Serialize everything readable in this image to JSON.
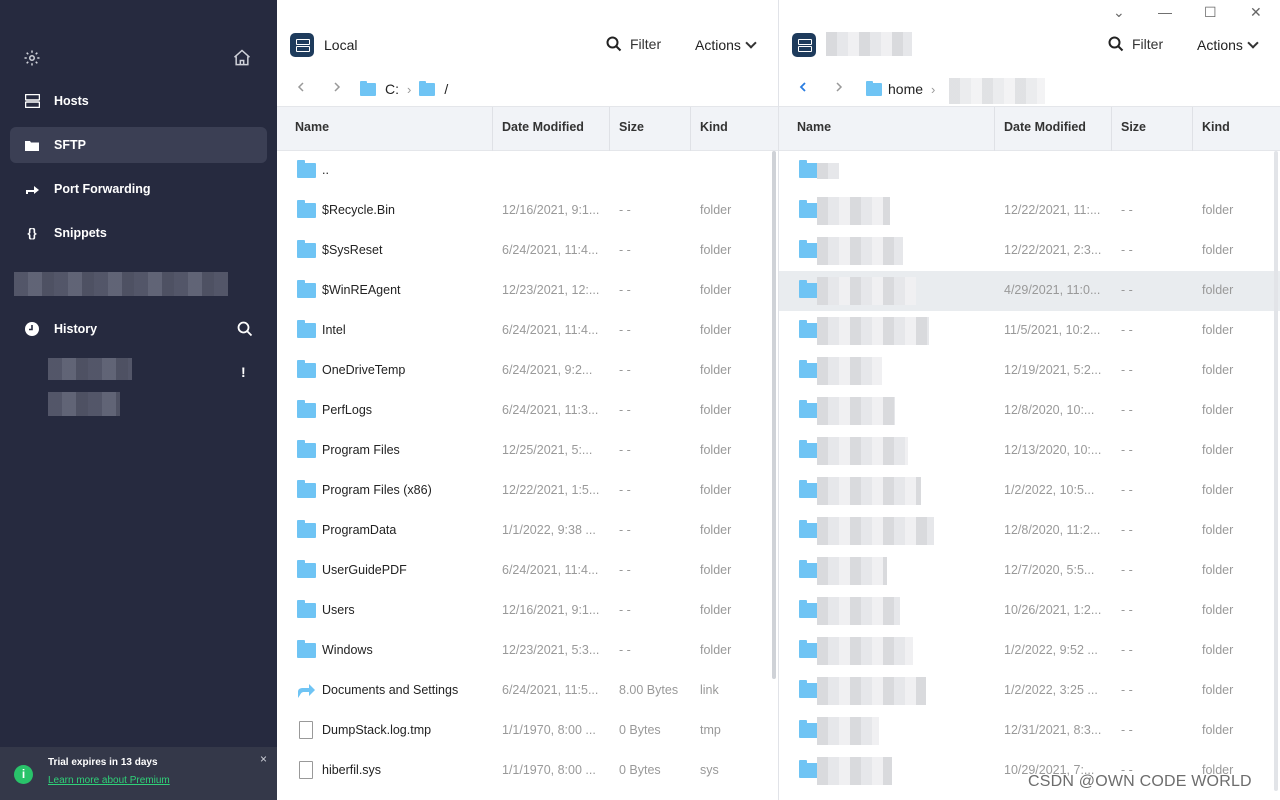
{
  "sidebar": {
    "nav": [
      {
        "label": "Hosts",
        "icon": "hosts-icon"
      },
      {
        "label": "SFTP",
        "icon": "folder-icon",
        "active": true
      },
      {
        "label": "Port Forwarding",
        "icon": "forward-arrow-icon"
      },
      {
        "label": "Snippets",
        "icon": "braces-icon"
      }
    ],
    "history_label": "History",
    "history_warning": "!",
    "trial": {
      "title": "Trial expires in 13 days",
      "link": "Learn more about Premium",
      "close": "×",
      "info": "i"
    }
  },
  "local": {
    "title": "Local",
    "filter_label": "Filter",
    "actions_label": "Actions",
    "breadcrumb": [
      "C:",
      "/"
    ],
    "columns": [
      "Name",
      "Date Modified",
      "Size",
      "Kind"
    ],
    "rows": [
      {
        "name": "..",
        "date": "",
        "size": "",
        "kind": "",
        "type": "folder"
      },
      {
        "name": "$Recycle.Bin",
        "date": "12/16/2021, 9:1...",
        "size": "- -",
        "kind": "folder",
        "type": "folder"
      },
      {
        "name": "$SysReset",
        "date": "6/24/2021, 11:4...",
        "size": "- -",
        "kind": "folder",
        "type": "folder"
      },
      {
        "name": "$WinREAgent",
        "date": "12/23/2021, 12:...",
        "size": "- -",
        "kind": "folder",
        "type": "folder"
      },
      {
        "name": "Intel",
        "date": "6/24/2021, 11:4...",
        "size": "- -",
        "kind": "folder",
        "type": "folder"
      },
      {
        "name": "OneDriveTemp",
        "date": "6/24/2021, 9:2...",
        "size": "- -",
        "kind": "folder",
        "type": "folder"
      },
      {
        "name": "PerfLogs",
        "date": "6/24/2021, 11:3...",
        "size": "- -",
        "kind": "folder",
        "type": "folder"
      },
      {
        "name": "Program Files",
        "date": "12/25/2021, 5:...",
        "size": "- -",
        "kind": "folder",
        "type": "folder"
      },
      {
        "name": "Program Files (x86)",
        "date": "12/22/2021, 1:5...",
        "size": "- -",
        "kind": "folder",
        "type": "folder"
      },
      {
        "name": "ProgramData",
        "date": "1/1/2022, 9:38 ...",
        "size": "- -",
        "kind": "folder",
        "type": "folder"
      },
      {
        "name": "UserGuidePDF",
        "date": "6/24/2021, 11:4...",
        "size": "- -",
        "kind": "folder",
        "type": "folder"
      },
      {
        "name": "Users",
        "date": "12/16/2021, 9:1...",
        "size": "- -",
        "kind": "folder",
        "type": "folder"
      },
      {
        "name": "Windows",
        "date": "12/23/2021, 5:3...",
        "size": "- -",
        "kind": "folder",
        "type": "folder"
      },
      {
        "name": "Documents and Settings",
        "date": "6/24/2021, 11:5...",
        "size": "8.00 Bytes",
        "kind": "link",
        "type": "link"
      },
      {
        "name": "DumpStack.log.tmp",
        "date": "1/1/1970, 8:00 ...",
        "size": "0 Bytes",
        "kind": "tmp",
        "type": "file"
      },
      {
        "name": "hiberfil.sys",
        "date": "1/1/1970, 8:00 ...",
        "size": "0 Bytes",
        "kind": "sys",
        "type": "file"
      }
    ]
  },
  "remote": {
    "filter_label": "Filter",
    "actions_label": "Actions",
    "breadcrumb": [
      "home"
    ],
    "columns": [
      "Name",
      "Date Modified",
      "Size",
      "Kind"
    ],
    "rows": [
      {
        "date": "",
        "size": "",
        "kind": ""
      },
      {
        "date": "12/22/2021, 11:...",
        "size": "- -",
        "kind": "folder"
      },
      {
        "date": "12/22/2021, 2:3...",
        "size": "- -",
        "kind": "folder"
      },
      {
        "date": "4/29/2021, 11:0...",
        "size": "- -",
        "kind": "folder",
        "selected": true
      },
      {
        "date": "11/5/2021, 10:2...",
        "size": "- -",
        "kind": "folder"
      },
      {
        "date": "12/19/2021, 5:2...",
        "size": "- -",
        "kind": "folder"
      },
      {
        "date": "12/8/2020, 10:...",
        "size": "- -",
        "kind": "folder"
      },
      {
        "date": "12/13/2020, 10:...",
        "size": "- -",
        "kind": "folder"
      },
      {
        "date": "1/2/2022, 10:5...",
        "size": "- -",
        "kind": "folder"
      },
      {
        "date": "12/8/2020, 11:2...",
        "size": "- -",
        "kind": "folder"
      },
      {
        "date": "12/7/2020, 5:5...",
        "size": "- -",
        "kind": "folder"
      },
      {
        "date": "10/26/2021, 1:2...",
        "size": "- -",
        "kind": "folder"
      },
      {
        "date": "1/2/2022, 9:52 ...",
        "size": "- -",
        "kind": "folder"
      },
      {
        "date": "1/2/2022, 3:25 ...",
        "size": "- -",
        "kind": "folder"
      },
      {
        "date": "12/31/2021, 8:3...",
        "size": "- -",
        "kind": "folder"
      },
      {
        "date": "10/29/2021, 7:...",
        "size": "- -",
        "kind": "folder"
      }
    ]
  },
  "window_controls": {
    "minimize": "—",
    "maximize": "☐",
    "close": "✕",
    "collapse": "⌄"
  },
  "watermark": "CSDN @OWN CODE WORLD",
  "colors": {
    "sidebar_bg": "#262a3f",
    "accent": "#29c36a",
    "folder": "#6fc4f4"
  }
}
